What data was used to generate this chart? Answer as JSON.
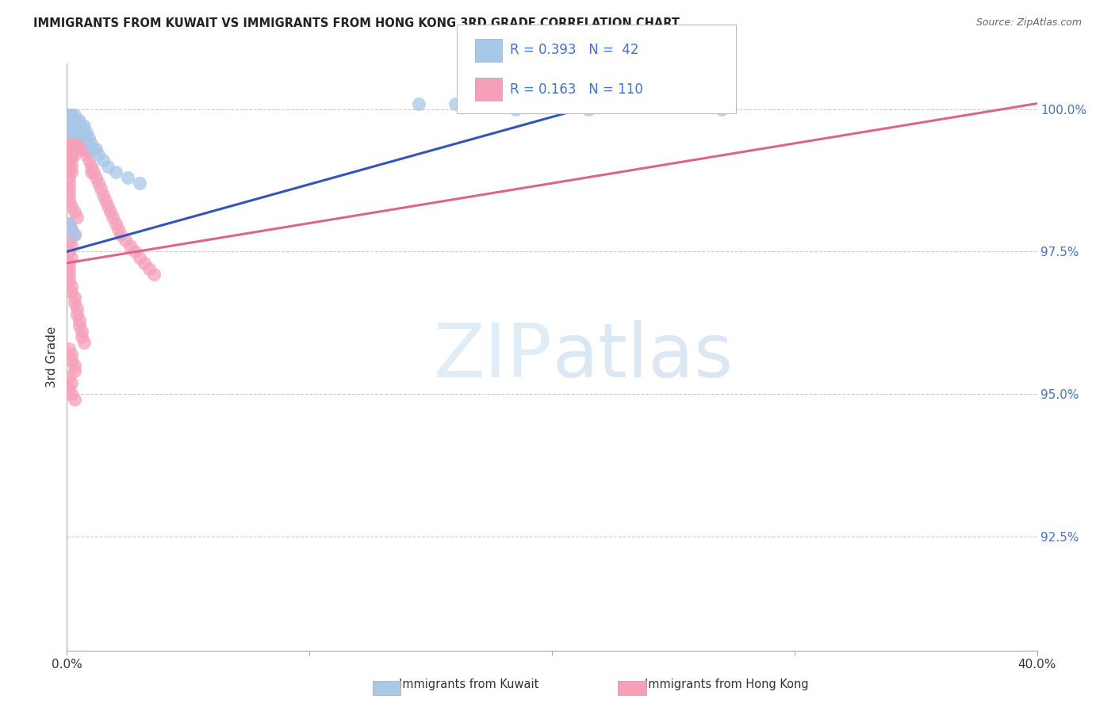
{
  "title": "IMMIGRANTS FROM KUWAIT VS IMMIGRANTS FROM HONG KONG 3RD GRADE CORRELATION CHART",
  "source": "Source: ZipAtlas.com",
  "ylabel": "3rd Grade",
  "ytick_labels": [
    "100.0%",
    "97.5%",
    "95.0%",
    "92.5%"
  ],
  "ytick_values": [
    1.0,
    0.975,
    0.95,
    0.925
  ],
  "xlim": [
    0.0,
    0.4
  ],
  "ylim": [
    0.905,
    1.008
  ],
  "legend_label1": "Immigrants from Kuwait",
  "legend_label2": "Immigrants from Hong Kong",
  "R1": "0.393",
  "N1": "42",
  "R2": "0.163",
  "N2": "110",
  "color_kuwait": "#a8c8e8",
  "color_hongkong": "#f5a0b8",
  "line_color_kuwait": "#3355bb",
  "line_color_hongkong": "#dd6688",
  "kuw_line_x0": 0.0,
  "kuw_line_y0": 0.975,
  "kuw_line_x1": 0.22,
  "kuw_line_y1": 1.001,
  "hk_line_x0": 0.0,
  "hk_line_y0": 0.973,
  "hk_line_x1": 0.4,
  "hk_line_y1": 1.001,
  "kuwait_x": [
    0.001,
    0.001,
    0.001,
    0.001,
    0.002,
    0.002,
    0.002,
    0.002,
    0.002,
    0.003,
    0.003,
    0.003,
    0.003,
    0.004,
    0.004,
    0.004,
    0.005,
    0.005,
    0.006,
    0.006,
    0.007,
    0.007,
    0.008,
    0.008,
    0.009,
    0.01,
    0.011,
    0.012,
    0.013,
    0.015,
    0.017,
    0.02,
    0.025,
    0.03,
    0.001,
    0.002,
    0.003,
    0.145,
    0.16,
    0.185,
    0.215,
    0.27
  ],
  "kuwait_y": [
    0.999,
    0.998,
    0.998,
    0.997,
    0.999,
    0.998,
    0.998,
    0.997,
    0.996,
    0.999,
    0.998,
    0.997,
    0.996,
    0.998,
    0.997,
    0.996,
    0.998,
    0.997,
    0.997,
    0.996,
    0.997,
    0.996,
    0.996,
    0.995,
    0.995,
    0.994,
    0.993,
    0.993,
    0.992,
    0.991,
    0.99,
    0.989,
    0.988,
    0.987,
    0.98,
    0.979,
    0.978,
    1.001,
    1.001,
    1.0,
    1.0,
    1.0
  ],
  "hongkong_x": [
    0.001,
    0.001,
    0.001,
    0.001,
    0.001,
    0.001,
    0.001,
    0.001,
    0.001,
    0.001,
    0.001,
    0.001,
    0.001,
    0.001,
    0.001,
    0.001,
    0.001,
    0.001,
    0.001,
    0.001,
    0.002,
    0.002,
    0.002,
    0.002,
    0.002,
    0.002,
    0.002,
    0.002,
    0.002,
    0.002,
    0.002,
    0.003,
    0.003,
    0.003,
    0.003,
    0.003,
    0.003,
    0.003,
    0.004,
    0.004,
    0.004,
    0.004,
    0.005,
    0.005,
    0.005,
    0.006,
    0.006,
    0.006,
    0.007,
    0.007,
    0.008,
    0.008,
    0.009,
    0.01,
    0.01,
    0.011,
    0.012,
    0.013,
    0.014,
    0.015,
    0.016,
    0.017,
    0.018,
    0.019,
    0.02,
    0.021,
    0.022,
    0.024,
    0.026,
    0.028,
    0.03,
    0.032,
    0.034,
    0.036,
    0.001,
    0.002,
    0.003,
    0.004,
    0.001,
    0.002,
    0.003,
    0.001,
    0.002,
    0.001,
    0.002,
    0.001,
    0.001,
    0.001,
    0.001,
    0.002,
    0.002,
    0.003,
    0.003,
    0.004,
    0.004,
    0.005,
    0.005,
    0.006,
    0.006,
    0.007,
    0.001,
    0.002,
    0.002,
    0.003,
    0.003,
    0.001,
    0.002,
    0.001,
    0.002,
    0.003
  ],
  "hongkong_y": [
    0.999,
    0.999,
    0.998,
    0.998,
    0.997,
    0.997,
    0.996,
    0.996,
    0.995,
    0.995,
    0.994,
    0.993,
    0.992,
    0.991,
    0.99,
    0.989,
    0.988,
    0.987,
    0.986,
    0.985,
    0.999,
    0.998,
    0.997,
    0.996,
    0.995,
    0.994,
    0.993,
    0.992,
    0.991,
    0.99,
    0.989,
    0.998,
    0.997,
    0.996,
    0.995,
    0.994,
    0.993,
    0.992,
    0.997,
    0.996,
    0.995,
    0.994,
    0.996,
    0.995,
    0.994,
    0.995,
    0.994,
    0.993,
    0.994,
    0.993,
    0.993,
    0.992,
    0.991,
    0.99,
    0.989,
    0.989,
    0.988,
    0.987,
    0.986,
    0.985,
    0.984,
    0.983,
    0.982,
    0.981,
    0.98,
    0.979,
    0.978,
    0.977,
    0.976,
    0.975,
    0.974,
    0.973,
    0.972,
    0.971,
    0.984,
    0.983,
    0.982,
    0.981,
    0.98,
    0.979,
    0.978,
    0.977,
    0.976,
    0.975,
    0.974,
    0.973,
    0.972,
    0.971,
    0.97,
    0.969,
    0.968,
    0.967,
    0.966,
    0.965,
    0.964,
    0.963,
    0.962,
    0.961,
    0.96,
    0.959,
    0.958,
    0.957,
    0.956,
    0.955,
    0.954,
    0.953,
    0.952,
    0.951,
    0.95,
    0.949
  ]
}
